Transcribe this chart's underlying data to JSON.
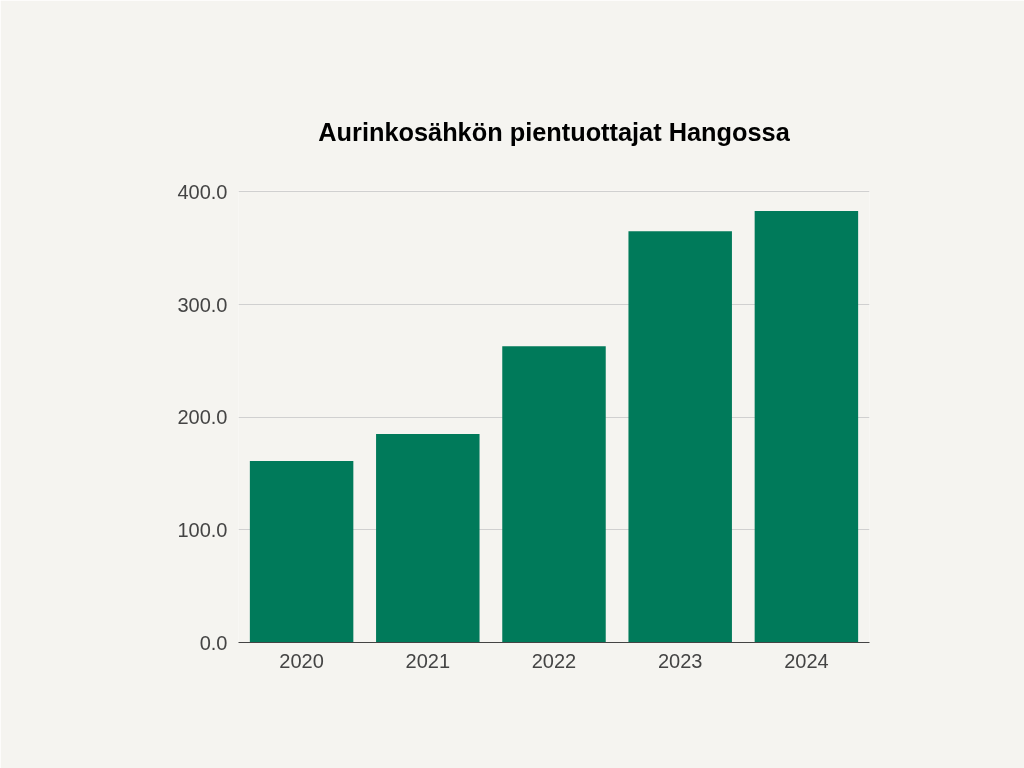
{
  "chart_data": {
    "type": "bar",
    "title": "Aurinkosähkön pientuottajat Hangossa",
    "categories": [
      "2020",
      "2021",
      "2022",
      "2023",
      "2024"
    ],
    "values": [
      161,
      185,
      263,
      365,
      383
    ],
    "color": "#007a5a",
    "ylim": [
      0,
      400
    ],
    "yticks": [
      {
        "value": 0,
        "label": "0.0"
      },
      {
        "value": 100,
        "label": "100.0"
      },
      {
        "value": 200,
        "label": "200.0"
      },
      {
        "value": 300,
        "label": "300.0"
      },
      {
        "value": 400,
        "label": "400.0"
      }
    ],
    "grid": "y"
  }
}
